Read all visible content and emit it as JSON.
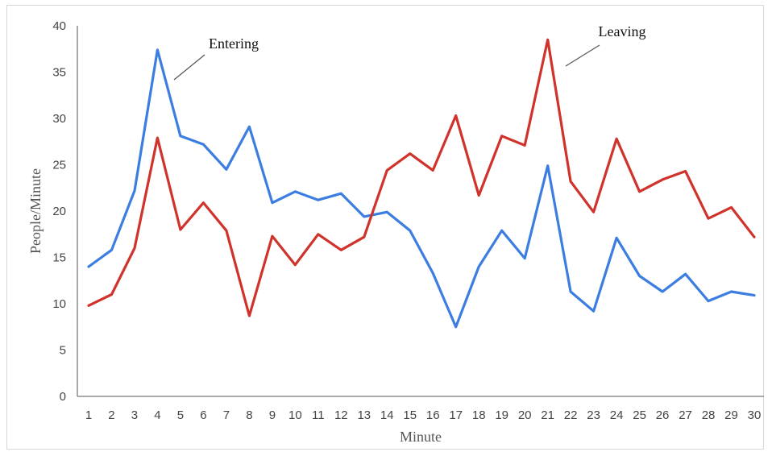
{
  "chart_data": {
    "type": "line",
    "title": "",
    "xlabel": "Minute",
    "ylabel": "People/Minute",
    "x": [
      1,
      2,
      3,
      4,
      5,
      6,
      7,
      8,
      9,
      10,
      11,
      12,
      13,
      14,
      15,
      16,
      17,
      18,
      19,
      20,
      21,
      22,
      23,
      24,
      25,
      26,
      27,
      28,
      29,
      30
    ],
    "ylim": [
      0,
      40
    ],
    "yticks": [
      0,
      5,
      10,
      15,
      20,
      25,
      30,
      35,
      40
    ],
    "grid": false,
    "legend": "none",
    "series": [
      {
        "name": "Entering",
        "color": "#3b7de0",
        "values": [
          14,
          15.8,
          22.2,
          37.4,
          28.1,
          27.2,
          24.5,
          29.1,
          20.9,
          22.1,
          21.2,
          21.9,
          19.4,
          19.9,
          17.9,
          13.3,
          7.5,
          14,
          17.9,
          14.9,
          24.9,
          11.3,
          9.2,
          17.1,
          13,
          11.3,
          13.2,
          10.3,
          11.3,
          10.9
        ]
      },
      {
        "name": "Leaving",
        "color": "#d0332b",
        "values": [
          9.8,
          11,
          16,
          27.9,
          18,
          20.9,
          17.9,
          8.7,
          17.3,
          14.2,
          17.5,
          15.8,
          17.2,
          24.4,
          26.2,
          24.4,
          30.3,
          21.7,
          28.1,
          27.1,
          38.5,
          23.2,
          19.9,
          27.8,
          22.1,
          23.4,
          24.3,
          19.2,
          20.4,
          17.2
        ]
      }
    ],
    "annotations": [
      {
        "text": "Entering",
        "series": "Entering"
      },
      {
        "text": "Leaving",
        "series": "Leaving"
      }
    ]
  }
}
